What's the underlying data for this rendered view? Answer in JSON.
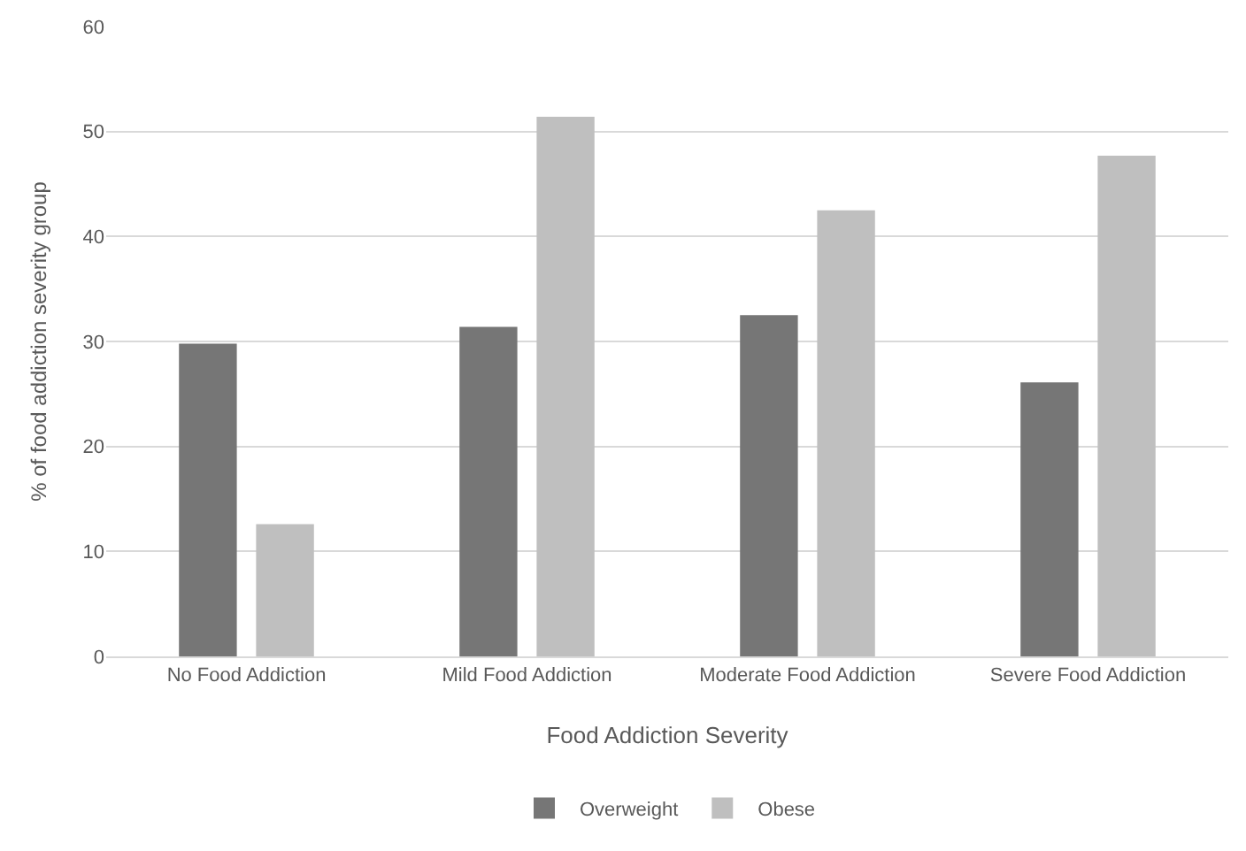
{
  "chart_data": {
    "type": "bar",
    "xlabel": "Food Addiction Severity",
    "ylabel": "% of food addiction severity group",
    "categories": [
      "No Food Addiction",
      "Mild Food Addiction",
      "Moderate Food Addiction",
      "Severe Food Addiction"
    ],
    "series": [
      {
        "name": "Overweight",
        "color": "#767676",
        "values": [
          29.8,
          31.4,
          32.5,
          26.1
        ]
      },
      {
        "name": "Obese",
        "color": "#bfbfbf",
        "values": [
          12.6,
          51.4,
          42.5,
          47.7
        ]
      }
    ],
    "ylim": [
      0,
      60
    ],
    "yticks": [
      0,
      10,
      20,
      30,
      40,
      50,
      60
    ],
    "grid": "y",
    "legend": "bottom"
  }
}
